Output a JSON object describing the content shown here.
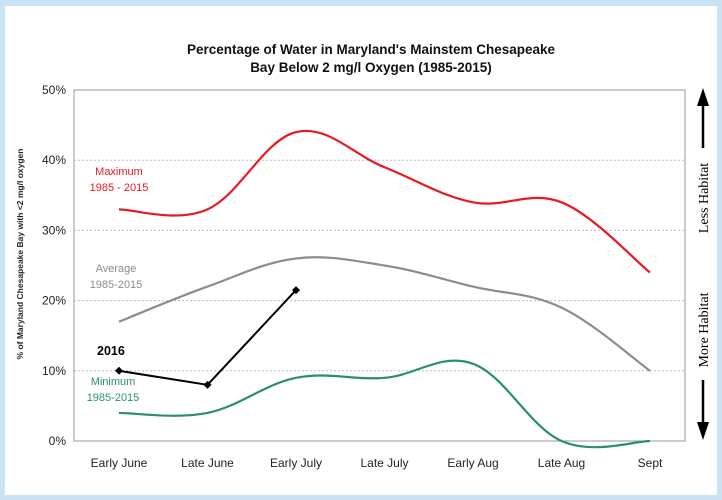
{
  "chart_data": {
    "type": "line",
    "title_line1": "Percentage of Water in Maryland's Mainstem Chesapeake",
    "title_line2": "Bay Below 2 mg/l Oxygen (1985-2015)",
    "ylabel": "% of Maryland Chesapeake Bay with <2 mg/l oxygen",
    "xlabel": "",
    "categories": [
      "Early June",
      "Late June",
      "Early July",
      "Late July",
      "Early Aug",
      "Late Aug",
      "Sept"
    ],
    "y_ticks": [
      "0%",
      "10%",
      "20%",
      "30%",
      "40%",
      "50%"
    ],
    "ylim": [
      0,
      50
    ],
    "grid": "horizontal dotted",
    "series": [
      {
        "name_line1": "Maximum",
        "name_line2": "1985 - 2015",
        "color": "#e8191f",
        "style": "smooth",
        "values": [
          33,
          33,
          44,
          39,
          34,
          34,
          24
        ]
      },
      {
        "name_line1": "Average",
        "name_line2": "1985-2015",
        "color": "#8c8c8c",
        "style": "smooth",
        "values": [
          17,
          22,
          26,
          25,
          22,
          19,
          10
        ]
      },
      {
        "name_line1": "Minimum",
        "name_line2": "1985-2015",
        "color": "#2a8f6a",
        "style": "smooth",
        "values": [
          4,
          4,
          9,
          9,
          11,
          0,
          0
        ]
      },
      {
        "name": "2016",
        "color": "#000000",
        "style": "straight-markers",
        "values": [
          10,
          8,
          21.5,
          null,
          null,
          null,
          null
        ]
      }
    ],
    "side_labels": {
      "top": "Less Habitat",
      "bottom": "More Habitat"
    },
    "colors": {
      "frame": "#c9e3f5",
      "grid": "#bdbdbd",
      "arrow": "#000000"
    }
  }
}
